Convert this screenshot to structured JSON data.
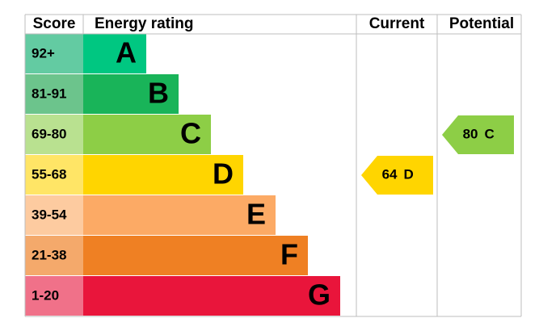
{
  "header": {
    "score": "Score",
    "rating": "Energy rating",
    "current": "Current",
    "potential": "Potential"
  },
  "rows": [
    {
      "score": "92+",
      "band": "A",
      "color": "#00c781",
      "score_color": "#63cba2"
    },
    {
      "score": "81-91",
      "band": "B",
      "color": "#19b459",
      "score_color": "#6cc48c"
    },
    {
      "score": "69-80",
      "band": "C",
      "color": "#8dce46",
      "score_color": "#b9e190"
    },
    {
      "score": "55-68",
      "band": "D",
      "color": "#ffd500",
      "score_color": "#ffe566"
    },
    {
      "score": "39-54",
      "band": "E",
      "color": "#fcaa65",
      "score_color": "#fdcba0"
    },
    {
      "score": "21-38",
      "band": "F",
      "color": "#ef8023",
      "score_color": "#f4a96b"
    },
    {
      "score": "1-20",
      "band": "G",
      "color": "#e9153b",
      "score_color": "#f07189"
    }
  ],
  "current": {
    "value": 64,
    "band": "D"
  },
  "potential": {
    "value": 80,
    "band": "C"
  }
}
